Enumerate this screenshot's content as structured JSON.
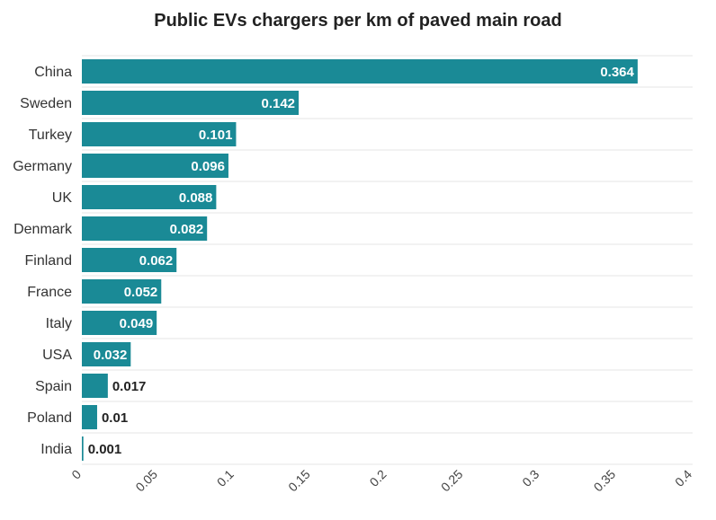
{
  "chart_data": {
    "type": "bar",
    "orientation": "horizontal",
    "title": "Public EVs chargers per km of paved main road",
    "categories": [
      "China",
      "Sweden",
      "Turkey",
      "Germany",
      "UK",
      "Denmark",
      "Finland",
      "France",
      "Italy",
      "USA",
      "Spain",
      "Poland",
      "India"
    ],
    "values": [
      0.364,
      0.142,
      0.101,
      0.096,
      0.088,
      0.082,
      0.062,
      0.052,
      0.049,
      0.032,
      0.017,
      0.01,
      0.001
    ],
    "value_labels": [
      "0.364",
      "0.142",
      "0.101",
      "0.096",
      "0.088",
      "0.082",
      "0.062",
      "0.052",
      "0.049",
      "0.032",
      "0.017",
      "0.01",
      "0.001"
    ],
    "xlabel": "",
    "ylabel": "",
    "xlim": [
      0,
      0.4
    ],
    "x_ticks": [
      0,
      0.05,
      0.1,
      0.15,
      0.2,
      0.25,
      0.3,
      0.35,
      0.4
    ],
    "x_tick_labels": [
      "0",
      "0.05",
      "0.1",
      "0.15",
      "0.2",
      "0.25",
      "0.3",
      "0.35",
      "0.4"
    ],
    "grid": true,
    "legend": "none"
  },
  "colors": {
    "bar": "#1a8a96",
    "gridline": "#e6e6e6",
    "label_inside": "#ffffff",
    "label_outside": "#222222"
  }
}
